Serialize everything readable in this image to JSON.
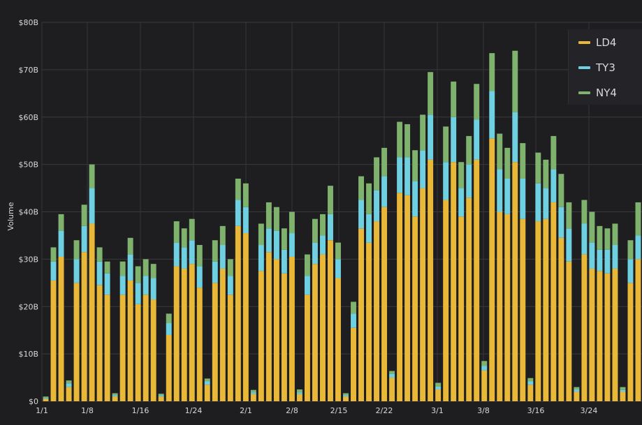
{
  "chart_data": {
    "type": "bar",
    "stacked": true,
    "title": "",
    "xlabel": "",
    "ylabel": "Volume",
    "ylim": [
      0,
      80
    ],
    "y_unit": "billions USD",
    "y_ticks": [
      "$0",
      "$10B",
      "$20B",
      "$30B",
      "$40B",
      "$50B",
      "$60B",
      "$70B",
      "$80B"
    ],
    "x_ticks": [
      "1/1",
      "1/8",
      "1/16",
      "1/24",
      "2/1",
      "2/8",
      "2/15",
      "2/22",
      "3/1",
      "3/8",
      "3/16",
      "3/24"
    ],
    "grid": true,
    "legend_position": "top-right",
    "series_colors": {
      "LD4": "#eab839",
      "TY3": "#6ed0e0",
      "NY4": "#7eb26d"
    },
    "series": [
      {
        "name": "LD4",
        "values": [
          0.5,
          25.5,
          30.5,
          3,
          25,
          31.5,
          37.5,
          24.5,
          22.5,
          1,
          22.5,
          25.5,
          20.5,
          22.5,
          21.5,
          1,
          14,
          28.5,
          28,
          29,
          24,
          3.5,
          25,
          28,
          22.5,
          37,
          35.5,
          1.5,
          27.5,
          31.5,
          30,
          27,
          30.5,
          1.5,
          22.5,
          29,
          31,
          34,
          26,
          1,
          15.5,
          36.5,
          33.5,
          38,
          41,
          5,
          44,
          43.5,
          39,
          45,
          51,
          2.5,
          42.5,
          50.5,
          39,
          43,
          51,
          6.5,
          55.5,
          40,
          39.5,
          50.5,
          38.5,
          3.5,
          38,
          38.5,
          42,
          34.5,
          29.5,
          2,
          31,
          28,
          27.5,
          27,
          28,
          2,
          25,
          30
        ]
      },
      {
        "name": "TY3",
        "values": [
          0.2,
          4,
          5.5,
          0.8,
          5,
          5.5,
          7.5,
          5,
          4.5,
          0.3,
          4,
          5.5,
          4.5,
          4,
          4.5,
          0.3,
          2.5,
          5,
          4.5,
          5,
          4.5,
          0.7,
          4.5,
          5,
          4,
          5.5,
          5.5,
          0.4,
          5.5,
          5,
          6,
          5,
          5,
          0.4,
          4,
          4.5,
          4,
          5.5,
          4,
          0.3,
          3,
          6,
          6,
          6.5,
          6.5,
          0.8,
          7.5,
          8,
          7.5,
          8,
          9.5,
          0.6,
          8,
          9.5,
          6,
          7,
          8.5,
          1,
          10,
          9,
          7.5,
          10.5,
          8.5,
          0.7,
          8,
          6.5,
          7,
          6.5,
          7,
          0.5,
          6.5,
          5.5,
          4.5,
          5,
          5,
          0.4,
          5,
          5
        ]
      },
      {
        "name": "NY4",
        "values": [
          0.3,
          3,
          3.5,
          0.6,
          4,
          4.5,
          5,
          3,
          2.5,
          0.4,
          3,
          3.5,
          3.5,
          3.5,
          3,
          0.3,
          2,
          4.5,
          4,
          4.5,
          4.5,
          0.6,
          4.5,
          4,
          3.5,
          4.5,
          5,
          0.5,
          4.5,
          5.5,
          5,
          4.5,
          4.5,
          0.6,
          4.5,
          5,
          4.5,
          6,
          3.5,
          0.4,
          2.5,
          5,
          6.5,
          7,
          6,
          0.6,
          7.5,
          7,
          6.5,
          7.5,
          9,
          0.8,
          7.5,
          7.5,
          5.5,
          6,
          7.5,
          1,
          8,
          7.5,
          6.5,
          13,
          7.5,
          0.7,
          6.5,
          6,
          7,
          7,
          5.5,
          0.5,
          5,
          6.5,
          5,
          4.5,
          4.5,
          0.6,
          4,
          7
        ]
      }
    ]
  },
  "legend": [
    {
      "label": "LD4",
      "color": "#eab839"
    },
    {
      "label": "TY3",
      "color": "#6ed0e0"
    },
    {
      "label": "NY4",
      "color": "#7eb26d"
    }
  ]
}
